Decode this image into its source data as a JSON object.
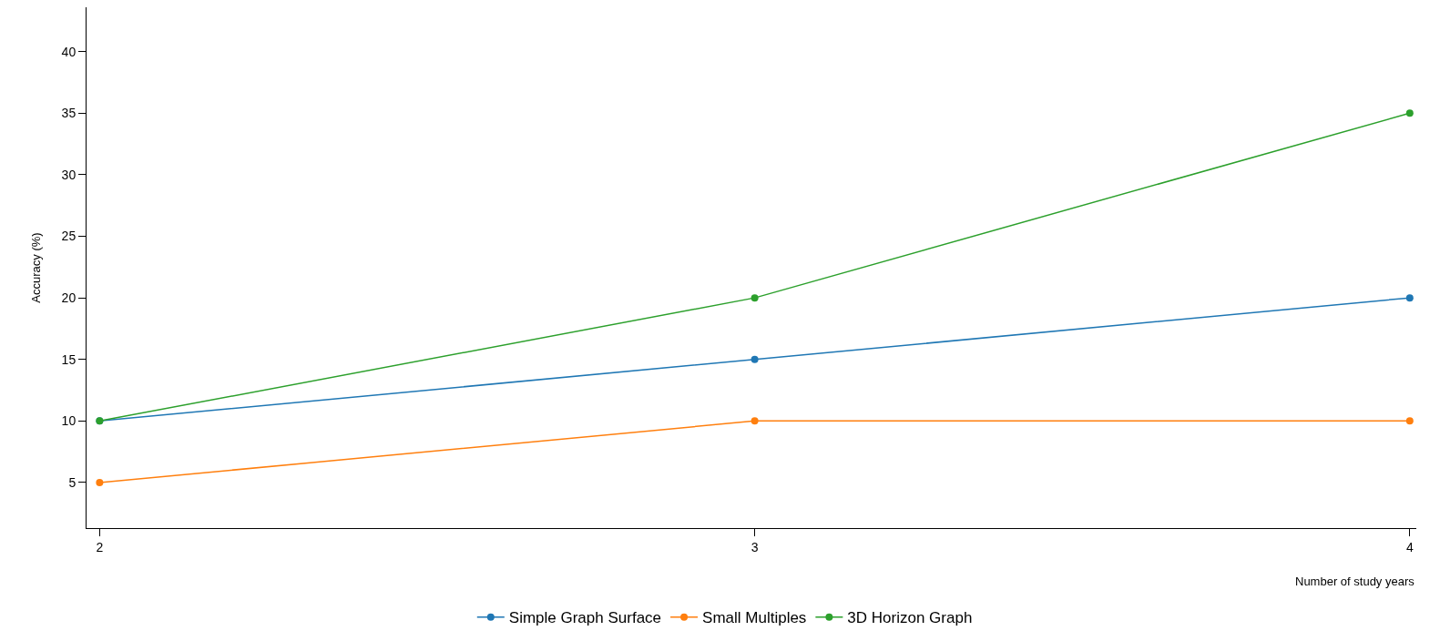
{
  "chart_data": {
    "type": "line",
    "xlabel": "Number of study years",
    "ylabel": "Accuracy (%)",
    "x": [
      2,
      3,
      4
    ],
    "series": [
      {
        "name": "Simple Graph Surface",
        "color": "#1f77b4",
        "values": [
          10,
          15,
          20
        ]
      },
      {
        "name": "Small Multiples",
        "color": "#ff7f0e",
        "values": [
          5,
          10,
          10
        ]
      },
      {
        "name": "3D Horizon Graph",
        "color": "#2ca02c",
        "values": [
          10,
          20,
          35
        ]
      }
    ],
    "xlim": [
      1.98,
      4.01
    ],
    "xticks": [
      2,
      3,
      4
    ],
    "ylim": [
      1.3,
      43.6
    ],
    "yticks": [
      5,
      10,
      15,
      20,
      25,
      30,
      35,
      40
    ],
    "grid": false,
    "legend": "bottom",
    "marker": "circle",
    "line_style": "solid"
  }
}
